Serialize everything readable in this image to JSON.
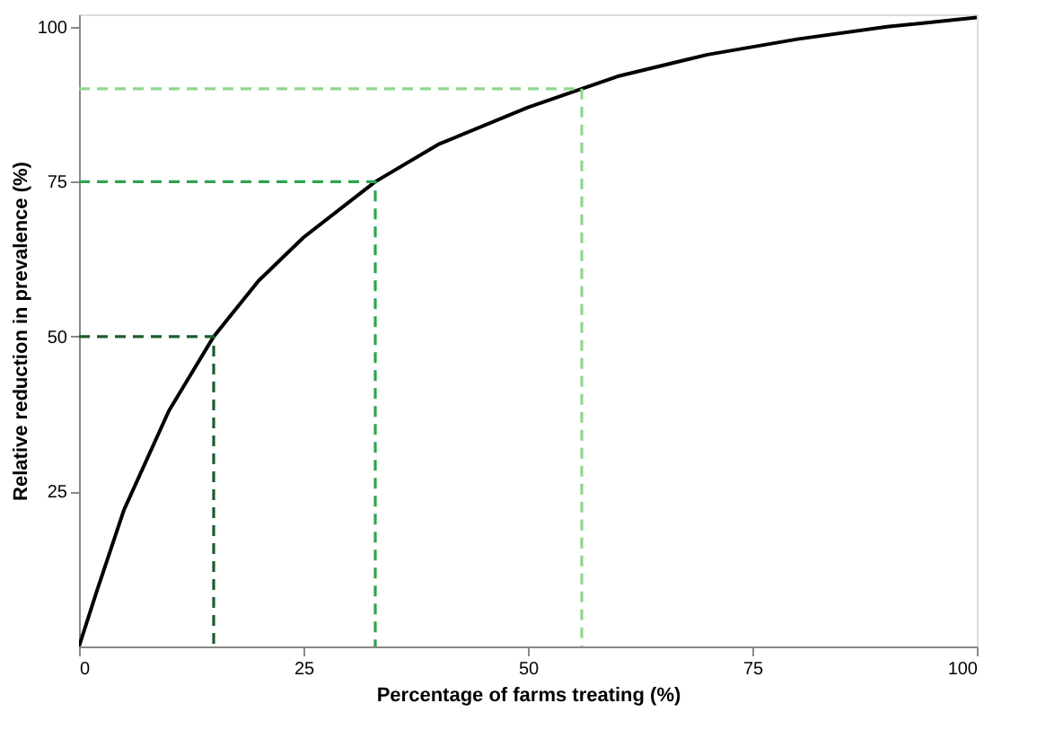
{
  "chart_data": {
    "type": "line",
    "xlabel": "Percentage of farms treating (%)",
    "ylabel": "Relative reduction in prevalence (%)",
    "xlim": [
      0,
      100
    ],
    "ylim": [
      0,
      102
    ],
    "xticks": [
      0,
      25,
      50,
      75,
      100
    ],
    "yticks": [
      25,
      50,
      75,
      100
    ],
    "grid": false,
    "marker": "none",
    "series": [
      {
        "color": "#000000",
        "line_style": "solid",
        "x": [
          0,
          2,
          5,
          10,
          15,
          20,
          25,
          33,
          40,
          50,
          56,
          60,
          70,
          80,
          90,
          100
        ],
        "values": [
          0,
          9,
          22,
          38,
          50,
          59,
          66,
          75,
          81,
          87,
          90,
          92,
          95.5,
          98,
          100,
          101.5
        ]
      },
      {
        "color": "#1b5e2c",
        "line_style": "dashed",
        "x": [
          0,
          15,
          15
        ],
        "values": [
          50,
          50,
          0
        ]
      },
      {
        "color": "#2ea44f",
        "line_style": "dashed",
        "x": [
          0,
          33,
          33
        ],
        "values": [
          75,
          75,
          0
        ]
      },
      {
        "color": "#8fd68f",
        "line_style": "dashed",
        "x": [
          0,
          56,
          56
        ],
        "values": [
          90,
          90,
          0
        ]
      }
    ]
  }
}
